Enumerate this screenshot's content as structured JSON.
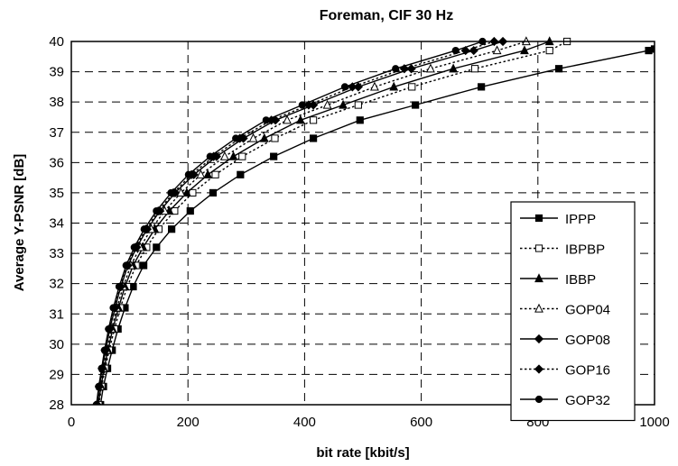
{
  "chart_data": {
    "type": "line",
    "title": "Foreman, CIF 30 Hz",
    "xlabel": "bit rate [kbit/s]",
    "ylabel": "Average Y-PSNR [dB]",
    "xlim": [
      0,
      1000
    ],
    "ylim": [
      28,
      40
    ],
    "xticks": [
      0,
      200,
      400,
      600,
      800,
      1000
    ],
    "yticks": [
      28,
      29,
      30,
      31,
      32,
      33,
      34,
      35,
      36,
      37,
      38,
      39,
      40
    ],
    "grid": true,
    "legend_position": "bottom-right",
    "series": [
      {
        "name": "IPPP",
        "style": "solid",
        "marker": "square-filled",
        "points": [
          [
            50,
            28.0
          ],
          [
            55,
            28.6
          ],
          [
            62,
            29.2
          ],
          [
            70,
            29.8
          ],
          [
            80,
            30.5
          ],
          [
            92,
            31.2
          ],
          [
            106,
            31.9
          ],
          [
            124,
            32.6
          ],
          [
            146,
            33.2
          ],
          [
            172,
            33.8
          ],
          [
            204,
            34.4
          ],
          [
            243,
            35.0
          ],
          [
            290,
            35.6
          ],
          [
            347,
            36.2
          ],
          [
            415,
            36.8
          ],
          [
            495,
            37.4
          ],
          [
            590,
            37.9
          ],
          [
            703,
            38.5
          ],
          [
            836,
            39.1
          ],
          [
            990,
            39.7
          ],
          [
            1000,
            39.75
          ]
        ]
      },
      {
        "name": "IBPBP",
        "style": "dotted",
        "marker": "square-open",
        "points": [
          [
            47,
            28.0
          ],
          [
            52,
            28.6
          ],
          [
            58,
            29.2
          ],
          [
            65,
            29.8
          ],
          [
            74,
            30.5
          ],
          [
            84,
            31.2
          ],
          [
            96,
            31.9
          ],
          [
            111,
            32.6
          ],
          [
            129,
            33.2
          ],
          [
            150,
            33.8
          ],
          [
            177,
            34.4
          ],
          [
            208,
            35.0
          ],
          [
            247,
            35.6
          ],
          [
            293,
            36.2
          ],
          [
            349,
            36.8
          ],
          [
            415,
            37.4
          ],
          [
            492,
            37.9
          ],
          [
            584,
            38.5
          ],
          [
            692,
            39.1
          ],
          [
            820,
            39.7
          ],
          [
            850,
            40.0
          ]
        ]
      },
      {
        "name": "IBBP",
        "style": "solid",
        "marker": "triangle-filled",
        "points": [
          [
            46,
            28.0
          ],
          [
            51,
            28.6
          ],
          [
            56,
            29.2
          ],
          [
            63,
            29.8
          ],
          [
            71,
            30.5
          ],
          [
            81,
            31.2
          ],
          [
            92,
            31.9
          ],
          [
            106,
            32.6
          ],
          [
            123,
            33.2
          ],
          [
            143,
            33.8
          ],
          [
            168,
            34.4
          ],
          [
            198,
            35.0
          ],
          [
            234,
            35.6
          ],
          [
            278,
            36.2
          ],
          [
            331,
            36.8
          ],
          [
            393,
            37.4
          ],
          [
            466,
            37.9
          ],
          [
            553,
            38.5
          ],
          [
            655,
            39.1
          ],
          [
            777,
            39.7
          ],
          [
            820,
            40.0
          ]
        ]
      },
      {
        "name": "GOP04",
        "style": "dotted",
        "marker": "triangle-open",
        "points": [
          [
            45,
            28.0
          ],
          [
            50,
            28.6
          ],
          [
            55,
            29.2
          ],
          [
            61,
            29.8
          ],
          [
            69,
            30.5
          ],
          [
            78,
            31.2
          ],
          [
            89,
            31.9
          ],
          [
            102,
            32.6
          ],
          [
            118,
            33.2
          ],
          [
            137,
            33.8
          ],
          [
            160,
            34.4
          ],
          [
            188,
            35.0
          ],
          [
            222,
            35.6
          ],
          [
            263,
            36.2
          ],
          [
            312,
            36.8
          ],
          [
            370,
            37.4
          ],
          [
            439,
            37.9
          ],
          [
            520,
            38.5
          ],
          [
            616,
            39.1
          ],
          [
            730,
            39.7
          ],
          [
            780,
            40.0
          ]
        ]
      },
      {
        "name": "GOP08",
        "style": "solid",
        "marker": "diamond-filled",
        "points": [
          [
            44,
            28.0
          ],
          [
            48,
            28.6
          ],
          [
            53,
            29.2
          ],
          [
            59,
            29.8
          ],
          [
            66,
            30.5
          ],
          [
            75,
            31.2
          ],
          [
            85,
            31.9
          ],
          [
            97,
            32.6
          ],
          [
            112,
            33.2
          ],
          [
            130,
            33.8
          ],
          [
            152,
            34.4
          ],
          [
            178,
            35.0
          ],
          [
            210,
            35.6
          ],
          [
            249,
            36.2
          ],
          [
            295,
            36.8
          ],
          [
            350,
            37.4
          ],
          [
            415,
            37.9
          ],
          [
            492,
            38.5
          ],
          [
            583,
            39.1
          ],
          [
            690,
            39.7
          ],
          [
            740,
            40.0
          ]
        ]
      },
      {
        "name": "GOP16",
        "style": "dotted",
        "marker": "diamond-filled",
        "points": [
          [
            44,
            28.0
          ],
          [
            48,
            28.6
          ],
          [
            53,
            29.2
          ],
          [
            58,
            29.8
          ],
          [
            65,
            30.5
          ],
          [
            74,
            31.2
          ],
          [
            84,
            31.9
          ],
          [
            96,
            32.6
          ],
          [
            110,
            33.2
          ],
          [
            128,
            33.8
          ],
          [
            149,
            34.4
          ],
          [
            175,
            35.0
          ],
          [
            206,
            35.6
          ],
          [
            244,
            36.2
          ],
          [
            289,
            36.8
          ],
          [
            343,
            37.4
          ],
          [
            407,
            37.9
          ],
          [
            482,
            38.5
          ],
          [
            571,
            39.1
          ],
          [
            676,
            39.7
          ],
          [
            725,
            40.0
          ]
        ]
      },
      {
        "name": "GOP32",
        "style": "solid",
        "marker": "circle-filled",
        "points": [
          [
            43,
            28.0
          ],
          [
            47,
            28.6
          ],
          [
            52,
            29.2
          ],
          [
            57,
            29.8
          ],
          [
            64,
            30.5
          ],
          [
            72,
            31.2
          ],
          [
            82,
            31.9
          ],
          [
            94,
            32.6
          ],
          [
            108,
            33.2
          ],
          [
            125,
            33.8
          ],
          [
            146,
            34.4
          ],
          [
            171,
            35.0
          ],
          [
            201,
            35.6
          ],
          [
            238,
            36.2
          ],
          [
            282,
            36.8
          ],
          [
            334,
            37.4
          ],
          [
            396,
            37.9
          ],
          [
            469,
            38.5
          ],
          [
            556,
            39.1
          ],
          [
            659,
            39.7
          ],
          [
            705,
            40.0
          ]
        ]
      }
    ]
  }
}
